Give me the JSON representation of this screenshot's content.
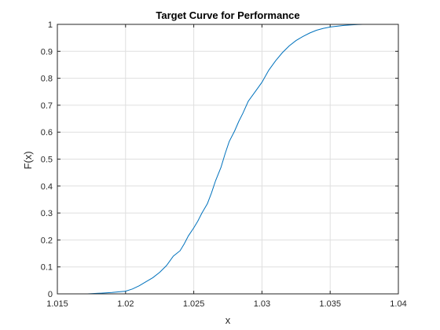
{
  "chart_data": {
    "type": "line",
    "title": "Target Curve for Performance",
    "xlabel": "x",
    "ylabel": "F(x)",
    "xlim": [
      1.015,
      1.04
    ],
    "ylim": [
      0,
      1
    ],
    "xticks": [
      1.015,
      1.02,
      1.025,
      1.03,
      1.035,
      1.04
    ],
    "xtick_labels": [
      "1.015",
      "1.02",
      "1.025",
      "1.03",
      "1.035",
      "1.04"
    ],
    "yticks": [
      0,
      0.1,
      0.2,
      0.3,
      0.4,
      0.5,
      0.6,
      0.7,
      0.8,
      0.9,
      1
    ],
    "ytick_labels": [
      "0",
      "0.1",
      "0.2",
      "0.3",
      "0.4",
      "0.5",
      "0.6",
      "0.7",
      "0.8",
      "0.9",
      "1"
    ],
    "grid": true,
    "line_color": "#0072BD",
    "series": [
      {
        "x": [
          1.0172,
          1.018,
          1.019,
          1.02,
          1.0205,
          1.021,
          1.0215,
          1.022,
          1.0225,
          1.023,
          1.0235,
          1.024,
          1.0243,
          1.0246,
          1.025,
          1.0253,
          1.0256,
          1.026,
          1.0263,
          1.0266,
          1.027,
          1.0273,
          1.0276,
          1.028,
          1.0283,
          1.0286,
          1.029,
          1.0295,
          1.03,
          1.0305,
          1.031,
          1.0315,
          1.032,
          1.0325,
          1.033,
          1.0335,
          1.034,
          1.0345,
          1.035,
          1.0355,
          1.036,
          1.0365,
          1.037,
          1.0374
        ],
        "y": [
          0.0,
          0.002,
          0.005,
          0.01,
          0.018,
          0.03,
          0.045,
          0.06,
          0.08,
          0.105,
          0.14,
          0.16,
          0.185,
          0.215,
          0.245,
          0.27,
          0.3,
          0.335,
          0.375,
          0.42,
          0.47,
          0.52,
          0.565,
          0.605,
          0.64,
          0.67,
          0.715,
          0.75,
          0.785,
          0.83,
          0.865,
          0.895,
          0.92,
          0.94,
          0.955,
          0.968,
          0.978,
          0.985,
          0.99,
          0.993,
          0.996,
          0.998,
          0.999,
          1.0
        ]
      }
    ]
  }
}
